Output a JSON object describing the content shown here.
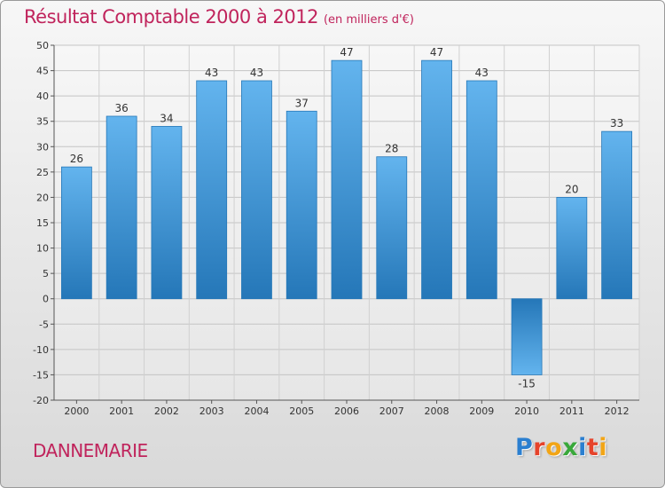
{
  "chart_data": {
    "type": "bar",
    "title": "Résultat Comptable 2000 à 2012",
    "unit": "(en milliers d'€)",
    "categories": [
      "2000",
      "2001",
      "2002",
      "2003",
      "2004",
      "2005",
      "2006",
      "2007",
      "2008",
      "2009",
      "2010",
      "2011",
      "2012"
    ],
    "values": [
      26,
      36,
      34,
      43,
      43,
      37,
      47,
      28,
      47,
      43,
      -15,
      20,
      33
    ],
    "ylim": [
      -20,
      50
    ],
    "yticks": [
      -20,
      -15,
      -10,
      -5,
      0,
      5,
      10,
      15,
      20,
      25,
      30,
      35,
      40,
      45,
      50
    ],
    "grid": true,
    "legend": "none",
    "xlabel": "",
    "ylabel": ""
  },
  "commune": "DANNEMARIE",
  "logo": {
    "letters": [
      "P",
      "r",
      "o",
      "x",
      "i",
      "t",
      "i"
    ],
    "colors": [
      "#2b7fd0",
      "#e6432b",
      "#f2a516",
      "#39a83a",
      "#2b7fd0",
      "#e6432b",
      "#f2a516"
    ]
  },
  "colors": {
    "bar_light": "#63b4ee",
    "bar_dark": "#2577b8",
    "title": "#c0245c"
  }
}
